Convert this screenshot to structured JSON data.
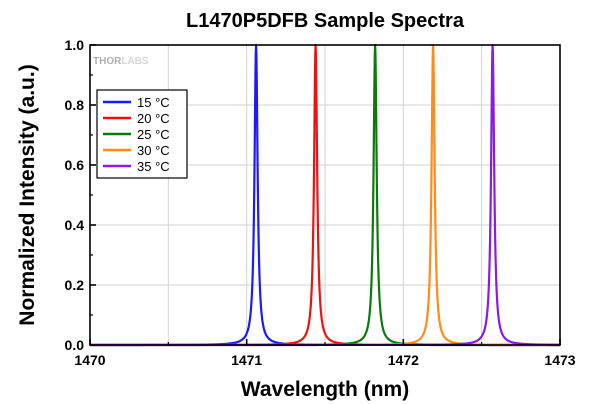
{
  "chart_data": {
    "type": "line",
    "title": "L1470P5DFB Sample Spectra",
    "xlabel": "Wavelength (nm)",
    "ylabel": "Normalized Intensity (a.u.)",
    "xlim": [
      1470,
      1473
    ],
    "ylim": [
      0,
      1.0
    ],
    "x_ticks": [
      1470,
      1471,
      1472,
      1473
    ],
    "y_ticks": [
      0.0,
      0.2,
      0.4,
      0.6,
      0.8,
      1.0
    ],
    "x_tick_labels": [
      "1470",
      "1471",
      "1472",
      "1473"
    ],
    "y_tick_labels": [
      "0.0",
      "0.2",
      "0.4",
      "0.6",
      "0.8",
      "1.0"
    ],
    "grid": true,
    "legend_position": "top-left",
    "series": [
      {
        "name": "15 °C",
        "peak_nm": 1471.06,
        "peak_value": 1.0,
        "color": "#1a1aff"
      },
      {
        "name": "20 °C",
        "peak_nm": 1471.44,
        "peak_value": 1.0,
        "color": "#ee1111"
      },
      {
        "name": "25 °C",
        "peak_nm": 1471.82,
        "peak_value": 1.0,
        "color": "#0b7a0b"
      },
      {
        "name": "30 °C",
        "peak_nm": 1472.19,
        "peak_value": 1.0,
        "color": "#ff8c1a"
      },
      {
        "name": "35 °C",
        "peak_nm": 1472.57,
        "peak_value": 1.0,
        "color": "#8a1ae6"
      }
    ]
  },
  "watermark": {
    "part1": "THOR",
    "part2": "LABS"
  }
}
